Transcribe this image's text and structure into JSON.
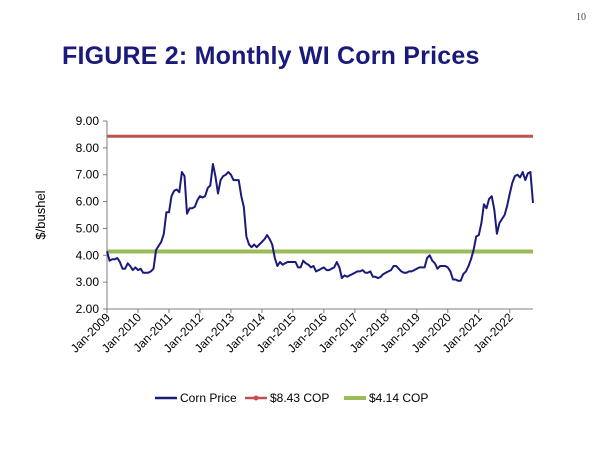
{
  "page": {
    "number": "10"
  },
  "chart_data": {
    "type": "line",
    "title": "FIGURE 2: Monthly WI Corn Prices",
    "xlabel": "",
    "ylabel": "$/bushel",
    "ylim": [
      2.0,
      9.0
    ],
    "yticks": [
      "2.00",
      "3.00",
      "4.00",
      "5.00",
      "6.00",
      "7.00",
      "8.00",
      "9.00"
    ],
    "xticks": [
      "Jan-2009",
      "Jan-2010",
      "Jan-2011",
      "Jan-2012",
      "Jan-2013",
      "Jan-2014",
      "Jan-2015",
      "Jan-2016",
      "Jan-2017",
      "Jan-2018",
      "Jan-2019",
      "Jan-2020",
      "Jan-2021",
      "Jan-2022"
    ],
    "x_start": "Jan-2009",
    "x_end": "Oct-2022",
    "grid": false,
    "legend_position": "bottom",
    "series": [
      {
        "name": "Corn Price",
        "color": "#1a1a7a",
        "values": [
          4.15,
          3.8,
          3.85,
          3.85,
          3.9,
          3.75,
          3.5,
          3.5,
          3.7,
          3.6,
          3.45,
          3.55,
          3.45,
          3.5,
          3.35,
          3.35,
          3.35,
          3.4,
          3.5,
          4.2,
          4.35,
          4.5,
          4.8,
          5.6,
          5.6,
          6.2,
          6.4,
          6.45,
          6.35,
          7.1,
          6.95,
          5.55,
          5.75,
          5.75,
          5.8,
          6.05,
          6.2,
          6.15,
          6.2,
          6.5,
          6.6,
          7.4,
          6.95,
          6.3,
          6.8,
          6.95,
          7.0,
          7.1,
          7.0,
          6.8,
          6.8,
          6.8,
          6.2,
          5.8,
          4.7,
          4.4,
          4.3,
          4.4,
          4.3,
          4.4,
          4.5,
          4.6,
          4.75,
          4.6,
          4.4,
          3.9,
          3.6,
          3.75,
          3.65,
          3.7,
          3.75,
          3.75,
          3.75,
          3.75,
          3.55,
          3.55,
          3.8,
          3.7,
          3.65,
          3.55,
          3.6,
          3.4,
          3.45,
          3.5,
          3.55,
          3.45,
          3.45,
          3.5,
          3.55,
          3.75,
          3.55,
          3.15,
          3.25,
          3.2,
          3.25,
          3.3,
          3.35,
          3.4,
          3.4,
          3.45,
          3.35,
          3.35,
          3.4,
          3.2,
          3.2,
          3.15,
          3.2,
          3.3,
          3.35,
          3.4,
          3.45,
          3.6,
          3.6,
          3.5,
          3.4,
          3.35,
          3.35,
          3.4,
          3.4,
          3.45,
          3.5,
          3.55,
          3.55,
          3.55,
          3.9,
          4.0,
          3.8,
          3.7,
          3.5,
          3.6,
          3.6,
          3.6,
          3.55,
          3.4,
          3.1,
          3.1,
          3.05,
          3.05,
          3.3,
          3.4,
          3.6,
          3.85,
          4.2,
          4.7,
          4.75,
          5.2,
          5.9,
          5.75,
          6.1,
          6.2,
          5.7,
          4.8,
          5.2,
          5.35,
          5.5,
          5.85,
          6.3,
          6.7,
          6.95,
          7.0,
          6.9,
          7.1,
          6.8,
          7.05,
          7.1,
          5.95
        ]
      },
      {
        "name": "$8.43 COP",
        "color": "#c0504d",
        "values": [
          8.43
        ]
      },
      {
        "name": "$4.14 COP",
        "color": "#9bbb59",
        "values": [
          4.14
        ]
      }
    ]
  }
}
